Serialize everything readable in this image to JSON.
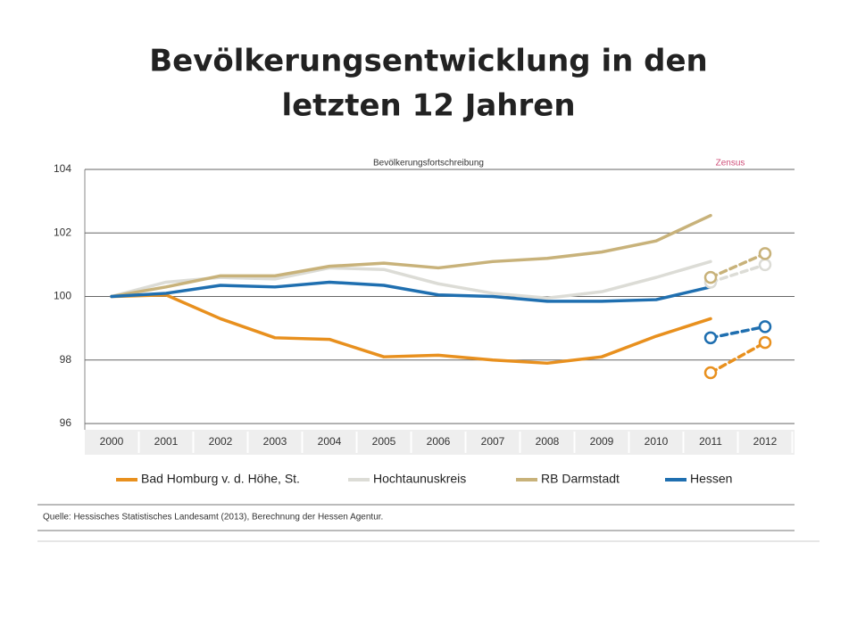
{
  "chart_data": {
    "type": "line",
    "title": [
      "Bevölkerungsentwicklung in den",
      "letzten 12 Jahren"
    ],
    "subtitle": "Bevölkerungsfortschreibung",
    "zensus_label": "Zensus",
    "x": [
      "2000",
      "2001",
      "2002",
      "2003",
      "2004",
      "2005",
      "2006",
      "2007",
      "2008",
      "2009",
      "2010",
      "2011",
      "2012"
    ],
    "series": [
      {
        "name": "Bad Homburg v. d. Höhe, St.",
        "color": "#e8901e",
        "values": [
          100,
          100.05,
          99.3,
          98.7,
          98.65,
          98.1,
          98.15,
          98.0,
          97.9,
          98.1,
          98.75,
          99.3,
          null
        ]
      },
      {
        "name": "Hochtaunuskreis",
        "color": "#dcdcd6",
        "values": [
          100,
          100.45,
          100.6,
          100.55,
          100.9,
          100.85,
          100.4,
          100.1,
          99.95,
          100.15,
          100.6,
          101.1,
          null
        ]
      },
      {
        "name": "RB Darmstadt",
        "color": "#c8b27a",
        "values": [
          100,
          100.3,
          100.65,
          100.65,
          100.95,
          101.05,
          100.9,
          101.1,
          101.2,
          101.4,
          101.75,
          102.55,
          null
        ]
      },
      {
        "name": "Hessen",
        "color": "#1f6fb0",
        "values": [
          100,
          100.1,
          100.35,
          100.3,
          100.45,
          100.35,
          100.05,
          100.0,
          99.85,
          99.85,
          99.9,
          100.3,
          null
        ]
      }
    ],
    "zensus_series": [
      {
        "color": "#e8901e",
        "values": [
          null,
          null,
          null,
          null,
          null,
          null,
          null,
          null,
          null,
          null,
          null,
          97.6,
          98.55
        ]
      },
      {
        "color": "#dcdcd6",
        "values": [
          null,
          null,
          null,
          null,
          null,
          null,
          null,
          null,
          null,
          null,
          null,
          100.45,
          101.0
        ]
      },
      {
        "color": "#c8b27a",
        "values": [
          null,
          null,
          null,
          null,
          null,
          null,
          null,
          null,
          null,
          null,
          null,
          100.6,
          101.35
        ]
      },
      {
        "color": "#1f6fb0",
        "values": [
          null,
          null,
          null,
          null,
          null,
          null,
          null,
          null,
          null,
          null,
          null,
          98.7,
          99.05
        ]
      }
    ],
    "ylim": [
      96,
      104
    ],
    "yticks": [
      96,
      98,
      100,
      102,
      104
    ],
    "grid": true,
    "source": "Quelle: Hessisches Statistisches Landesamt (2013), Berechnung der Hessen Agentur."
  }
}
